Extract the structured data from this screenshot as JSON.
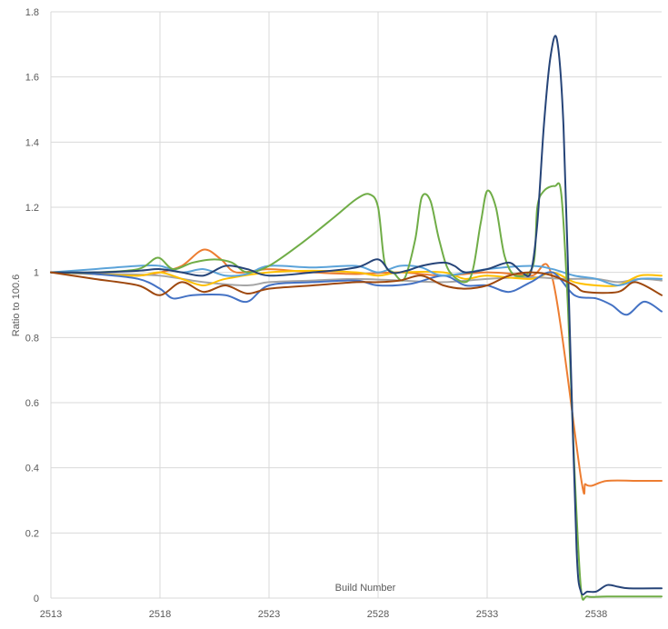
{
  "chart_data": {
    "type": "line",
    "title": "",
    "xlabel": "Build Number",
    "ylabel": "Ratio to 100.6",
    "xlim": [
      2513,
      2541
    ],
    "ylim": [
      0,
      1.8
    ],
    "x_ticks": [
      2513,
      2518,
      2523,
      2528,
      2533,
      2538
    ],
    "y_ticks": [
      0,
      0.2,
      0.4,
      0.6,
      0.8,
      1,
      1.2,
      1.4,
      1.6,
      1.8
    ],
    "y_tick_labels": [
      "0",
      "0.2",
      "0.4",
      "0.6",
      "0.8",
      "1",
      "1.2",
      "1.4",
      "1.6",
      "1.8"
    ],
    "grid": true,
    "legend": "none",
    "series": [
      {
        "color": "#ed7d31",
        "points": [
          [
            2513,
            1.0
          ],
          [
            2515,
            0.995
          ],
          [
            2517,
            0.99
          ],
          [
            2518,
            1.0
          ],
          [
            2519,
            1.02
          ],
          [
            2520,
            1.07
          ],
          [
            2520.8,
            1.04
          ],
          [
            2521.5,
            1.0
          ],
          [
            2523,
            1.01
          ],
          [
            2525,
            1.0
          ],
          [
            2527,
            0.995
          ],
          [
            2529,
            1.0
          ],
          [
            2531,
            0.99
          ],
          [
            2533,
            1.0
          ],
          [
            2535,
            0.99
          ],
          [
            2536,
            0.98
          ],
          [
            2537.3,
            0.37
          ],
          [
            2537.5,
            0.35
          ],
          [
            2537.8,
            0.345
          ],
          [
            2538.5,
            0.36
          ],
          [
            2540,
            0.36
          ],
          [
            2541,
            0.36
          ]
        ]
      },
      {
        "color": "#a5a5a5",
        "points": [
          [
            2513,
            1.0
          ],
          [
            2516,
            0.995
          ],
          [
            2518,
            0.99
          ],
          [
            2520,
            0.97
          ],
          [
            2522,
            0.96
          ],
          [
            2523,
            0.97
          ],
          [
            2525,
            0.975
          ],
          [
            2527,
            0.98
          ],
          [
            2529,
            0.975
          ],
          [
            2531,
            0.97
          ],
          [
            2533,
            0.98
          ],
          [
            2535,
            0.985
          ],
          [
            2536.5,
            0.98
          ],
          [
            2538,
            0.98
          ],
          [
            2539,
            0.97
          ],
          [
            2540,
            0.98
          ],
          [
            2541,
            0.975
          ]
        ]
      },
      {
        "color": "#ffc000",
        "points": [
          [
            2513,
            1.0
          ],
          [
            2515,
            0.995
          ],
          [
            2517,
            0.99
          ],
          [
            2518,
            1.0
          ],
          [
            2519,
            0.98
          ],
          [
            2520,
            0.96
          ],
          [
            2521,
            0.98
          ],
          [
            2523,
            1.0
          ],
          [
            2525,
            1.005
          ],
          [
            2527,
            1.0
          ],
          [
            2528,
            0.99
          ],
          [
            2529,
            1.0
          ],
          [
            2531,
            1.0
          ],
          [
            2532,
            0.98
          ],
          [
            2533,
            0.99
          ],
          [
            2535,
            0.98
          ],
          [
            2536,
            1.0
          ],
          [
            2537,
            0.97
          ],
          [
            2538,
            0.96
          ],
          [
            2539,
            0.96
          ],
          [
            2540,
            0.99
          ],
          [
            2541,
            0.99
          ]
        ]
      },
      {
        "color": "#4472c4",
        "points": [
          [
            2513,
            1.0
          ],
          [
            2515,
            0.995
          ],
          [
            2517,
            0.98
          ],
          [
            2518,
            0.95
          ],
          [
            2518.6,
            0.92
          ],
          [
            2519.5,
            0.93
          ],
          [
            2521,
            0.93
          ],
          [
            2522,
            0.91
          ],
          [
            2523,
            0.96
          ],
          [
            2525,
            0.97
          ],
          [
            2527,
            0.975
          ],
          [
            2528,
            0.96
          ],
          [
            2529.5,
            0.965
          ],
          [
            2531,
            0.99
          ],
          [
            2532,
            0.96
          ],
          [
            2533,
            0.96
          ],
          [
            2534,
            0.94
          ],
          [
            2535,
            0.97
          ],
          [
            2536,
            1.0
          ],
          [
            2537,
            0.93
          ],
          [
            2538,
            0.92
          ],
          [
            2538.7,
            0.9
          ],
          [
            2539.4,
            0.87
          ],
          [
            2540.2,
            0.91
          ],
          [
            2541,
            0.88
          ]
        ]
      },
      {
        "color": "#5ba3d9",
        "points": [
          [
            2513,
            1.0
          ],
          [
            2515,
            1.01
          ],
          [
            2517,
            1.02
          ],
          [
            2518,
            1.02
          ],
          [
            2519,
            1.0
          ],
          [
            2520,
            1.01
          ],
          [
            2521,
            0.99
          ],
          [
            2522,
            0.995
          ],
          [
            2523,
            1.02
          ],
          [
            2525,
            1.015
          ],
          [
            2527,
            1.02
          ],
          [
            2528,
            1.0
          ],
          [
            2529,
            1.02
          ],
          [
            2530,
            1.015
          ],
          [
            2531,
            0.99
          ],
          [
            2533,
            1.01
          ],
          [
            2535,
            1.02
          ],
          [
            2536,
            1.01
          ],
          [
            2537,
            0.99
          ],
          [
            2538,
            0.98
          ],
          [
            2539,
            0.96
          ],
          [
            2540,
            0.98
          ],
          [
            2541,
            0.98
          ]
        ]
      },
      {
        "color": "#70ad47",
        "points": [
          [
            2513,
            1.0
          ],
          [
            2515,
            1.0
          ],
          [
            2517,
            1.01
          ],
          [
            2517.9,
            1.045
          ],
          [
            2518.6,
            1.01
          ],
          [
            2519.5,
            1.03
          ],
          [
            2520.5,
            1.04
          ],
          [
            2521.3,
            1.03
          ],
          [
            2522,
            1.0
          ],
          [
            2523,
            1.02
          ],
          [
            2524.5,
            1.09
          ],
          [
            2526,
            1.17
          ],
          [
            2527,
            1.225
          ],
          [
            2527.6,
            1.24
          ],
          [
            2528,
            1.2
          ],
          [
            2528.3,
            1.03
          ],
          [
            2528.7,
            1.0
          ],
          [
            2529.2,
            0.98
          ],
          [
            2529.7,
            1.1
          ],
          [
            2530,
            1.23
          ],
          [
            2530.4,
            1.22
          ],
          [
            2530.8,
            1.1
          ],
          [
            2531.3,
            1.0
          ],
          [
            2532.2,
            0.98
          ],
          [
            2532.7,
            1.15
          ],
          [
            2533,
            1.25
          ],
          [
            2533.4,
            1.2
          ],
          [
            2533.8,
            1.05
          ],
          [
            2534.3,
            0.99
          ],
          [
            2535.1,
            1.02
          ],
          [
            2535.3,
            1.2
          ],
          [
            2535.6,
            1.25
          ],
          [
            2536.1,
            1.265
          ],
          [
            2536.4,
            1.24
          ],
          [
            2536.7,
            0.9
          ],
          [
            2537,
            0.4
          ],
          [
            2537.3,
            0.03
          ],
          [
            2537.6,
            0.005
          ],
          [
            2538.5,
            0.005
          ],
          [
            2541,
            0.005
          ]
        ]
      },
      {
        "color": "#264478",
        "points": [
          [
            2513,
            1.0
          ],
          [
            2515,
            1.0
          ],
          [
            2517,
            1.005
          ],
          [
            2518,
            1.01
          ],
          [
            2519,
            1.0
          ],
          [
            2520,
            0.99
          ],
          [
            2521,
            1.02
          ],
          [
            2522,
            1.01
          ],
          [
            2523,
            0.99
          ],
          [
            2525,
            1.0
          ],
          [
            2527,
            1.015
          ],
          [
            2528,
            1.04
          ],
          [
            2528.6,
            1.0
          ],
          [
            2529.3,
            1.005
          ],
          [
            2530,
            1.02
          ],
          [
            2531,
            1.03
          ],
          [
            2531.5,
            1.02
          ],
          [
            2532,
            1.0
          ],
          [
            2533,
            1.01
          ],
          [
            2534,
            1.03
          ],
          [
            2534.6,
            1.0
          ],
          [
            2535,
            1.0
          ],
          [
            2535.3,
            1.15
          ],
          [
            2535.6,
            1.45
          ],
          [
            2535.9,
            1.66
          ],
          [
            2536.2,
            1.715
          ],
          [
            2536.5,
            1.45
          ],
          [
            2536.8,
            0.8
          ],
          [
            2537.1,
            0.15
          ],
          [
            2537.3,
            0.02
          ],
          [
            2537.6,
            0.02
          ],
          [
            2538,
            0.02
          ],
          [
            2538.5,
            0.04
          ],
          [
            2539,
            0.035
          ],
          [
            2539.5,
            0.03
          ],
          [
            2541,
            0.03
          ]
        ]
      },
      {
        "color": "#9e480e",
        "points": [
          [
            2513,
            1.0
          ],
          [
            2515,
            0.98
          ],
          [
            2517,
            0.96
          ],
          [
            2518,
            0.93
          ],
          [
            2519,
            0.97
          ],
          [
            2520,
            0.94
          ],
          [
            2521,
            0.96
          ],
          [
            2522,
            0.935
          ],
          [
            2523,
            0.95
          ],
          [
            2525,
            0.96
          ],
          [
            2527,
            0.97
          ],
          [
            2528,
            0.97
          ],
          [
            2529,
            0.975
          ],
          [
            2530,
            0.99
          ],
          [
            2531,
            0.96
          ],
          [
            2532,
            0.95
          ],
          [
            2533,
            0.96
          ],
          [
            2534,
            0.99
          ],
          [
            2535,
            1.0
          ],
          [
            2536,
            0.99
          ],
          [
            2537,
            0.96
          ],
          [
            2537.5,
            0.94
          ],
          [
            2539,
            0.94
          ],
          [
            2539.8,
            0.97
          ],
          [
            2541,
            0.93
          ]
        ]
      }
    ]
  }
}
